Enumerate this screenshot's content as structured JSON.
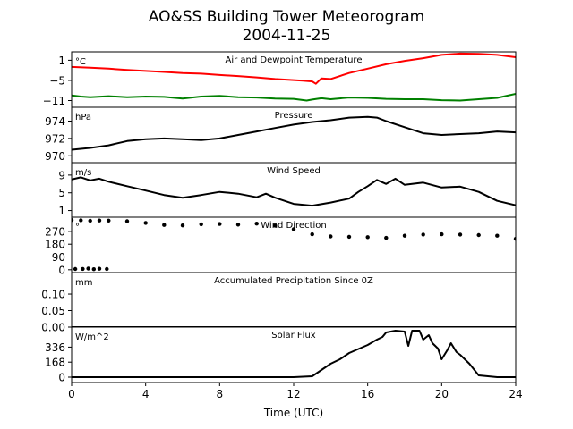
{
  "title_line1": "AO&SS Building Tower Meteorogram",
  "title_line2": "2004-11-25",
  "chart_data": {
    "type": "line",
    "xlabel": "Time (UTC)",
    "xlim": [
      0,
      24
    ],
    "xticks": [
      0,
      4,
      8,
      12,
      16,
      20,
      24
    ],
    "panels": [
      {
        "name": "Air and Dewpoint Temperature",
        "unit": "°C",
        "ylim": [
          -13,
          3.5
        ],
        "yticks": [
          {
            "v": 1,
            "label": "1"
          },
          {
            "v": -5,
            "label": "−5"
          },
          {
            "v": -11,
            "label": "−11"
          }
        ],
        "series": [
          {
            "color": "#ff0000",
            "x": [
              0,
              1,
              2,
              3,
              4,
              5,
              6,
              7,
              8,
              9,
              10,
              11,
              12,
              12.5,
              13,
              13.2,
              13.5,
              14,
              15,
              16,
              17,
              18,
              19,
              20,
              21,
              22,
              23,
              24
            ],
            "y": [
              -1,
              -1.2,
              -1.5,
              -1.9,
              -2.2,
              -2.5,
              -2.8,
              -3,
              -3.4,
              -3.7,
              -4.1,
              -4.6,
              -4.9,
              -5.1,
              -5.3,
              -6,
              -4.4,
              -4.6,
              -2.8,
              -1.5,
              -0.2,
              0.8,
              1.6,
              2.6,
              3,
              2.9,
              2.6,
              1.9
            ]
          },
          {
            "color": "#008000",
            "x": [
              0,
              0.5,
              1,
              2,
              3,
              4,
              5,
              6,
              7,
              8,
              9,
              10,
              11,
              12,
              12.7,
              13,
              13.5,
              14,
              15,
              16,
              17,
              18,
              19,
              20,
              21,
              22,
              23,
              24
            ],
            "y": [
              -9.5,
              -9.8,
              -10,
              -9.7,
              -10,
              -9.8,
              -9.9,
              -10.4,
              -9.8,
              -9.6,
              -10,
              -10.1,
              -10.4,
              -10.5,
              -11,
              -10.7,
              -10.3,
              -10.6,
              -10.1,
              -10.2,
              -10.5,
              -10.6,
              -10.6,
              -10.9,
              -11,
              -10.6,
              -10.2,
              -9
            ]
          }
        ]
      },
      {
        "name": "Pressure",
        "unit": "hPa",
        "ylim": [
          969.2,
          975.6
        ],
        "yticks": [
          {
            "v": 974,
            "label": "974"
          },
          {
            "v": 972,
            "label": "972"
          },
          {
            "v": 970,
            "label": "970"
          }
        ],
        "series": [
          {
            "color": "#000000",
            "x": [
              0,
              1,
              2,
              3,
              4,
              5,
              6,
              7,
              8,
              9,
              10,
              11,
              12,
              13,
              14,
              15,
              16,
              16.5,
              17,
              18,
              19,
              20,
              21,
              22,
              23,
              24
            ],
            "y": [
              970.7,
              970.9,
              971.2,
              971.7,
              971.9,
              972.0,
              971.9,
              971.8,
              972.0,
              972.4,
              972.8,
              973.2,
              973.6,
              973.9,
              974.1,
              974.4,
              974.5,
              974.4,
              974.0,
              973.3,
              972.6,
              972.4,
              972.5,
              972.6,
              972.8,
              972.7
            ]
          }
        ]
      },
      {
        "name": "Wind Speed",
        "unit": "m/s",
        "ylim": [
          -0.5,
          11.8
        ],
        "yticks": [
          {
            "v": 9,
            "label": "9"
          },
          {
            "v": 5,
            "label": "5"
          },
          {
            "v": 1,
            "label": "1"
          }
        ],
        "series": [
          {
            "color": "#000000",
            "x": [
              0,
              0.5,
              1,
              1.5,
              2,
              3,
              4,
              5,
              6,
              7,
              8,
              9,
              10,
              10.5,
              11,
              12,
              13,
              14,
              15,
              15.5,
              16,
              16.5,
              17,
              17.5,
              18,
              19,
              20,
              21,
              22,
              23,
              24
            ],
            "y": [
              8,
              8.5,
              7.8,
              8.2,
              7.5,
              6.5,
              5.5,
              4.5,
              3.9,
              4.5,
              5.2,
              4.8,
              4.0,
              4.8,
              3.9,
              2.5,
              2.1,
              2.8,
              3.7,
              5.2,
              6.5,
              7.9,
              7,
              8.2,
              6.8,
              7.3,
              6.2,
              6.4,
              5.2,
              3.2,
              2.2
            ]
          }
        ]
      },
      {
        "name": "Wind Direction",
        "unit": "°",
        "ylim": [
          -20,
          370
        ],
        "yticks": [
          {
            "v": 270,
            "label": "270"
          },
          {
            "v": 180,
            "label": "180"
          },
          {
            "v": 90,
            "label": "90"
          },
          {
            "v": 0,
            "label": "0"
          }
        ],
        "series": [
          {
            "color": "#000000",
            "style": "dots",
            "x": [
              0,
              0.5,
              1,
              1.5,
              2,
              3,
              4,
              5,
              6,
              7,
              8,
              9,
              10,
              11,
              12,
              13,
              14,
              15,
              16,
              17,
              18,
              19,
              20,
              21,
              22,
              23,
              24
            ],
            "y": [
              350,
              348,
              345,
              347,
              346,
              342,
              330,
              315,
              312,
              320,
              322,
              318,
              325,
              310,
              285,
              250,
              235,
              232,
              230,
              225,
              240,
              248,
              250,
              248,
              244,
              240,
              218
            ]
          },
          {
            "color": "#000000",
            "style": "dots",
            "x": [
              0.2,
              0.6,
              0.9,
              1.2,
              1.5,
              1.9
            ],
            "y": [
              5,
              6,
              8,
              4,
              7,
              5
            ]
          }
        ]
      },
      {
        "name": "Accumulated Precipitation Since 0Z",
        "unit": "mm",
        "ylim": [
          0,
          0.165
        ],
        "yticks": [
          {
            "v": 0.1,
            "label": "0.10"
          },
          {
            "v": 0.05,
            "label": "0.05"
          },
          {
            "v": 0,
            "label": "0.00"
          }
        ],
        "series": [
          {
            "color": "#000000",
            "x": [
              0,
              24
            ],
            "y": [
              0,
              0
            ]
          }
        ]
      },
      {
        "name": "Solar Flux",
        "unit": "W/m^2",
        "ylim": [
          -60,
          560
        ],
        "yticks": [
          {
            "v": 336,
            "label": "336"
          },
          {
            "v": 168,
            "label": "168"
          },
          {
            "v": 0,
            "label": "0"
          }
        ],
        "series": [
          {
            "color": "#000000",
            "x": [
              0,
              12,
              13,
              13.5,
              14,
              14.3,
              14.5,
              15,
              16,
              16.5,
              16.8,
              17,
              17.5,
              18,
              18.2,
              18.4,
              18.8,
              19,
              19.3,
              19.5,
              19.8,
              20,
              20.3,
              20.5,
              20.8,
              21,
              21.5,
              22,
              23,
              24
            ],
            "y": [
              0,
              0,
              10,
              80,
              150,
              180,
              200,
              270,
              360,
              420,
              450,
              500,
              520,
              510,
              350,
              520,
              520,
              420,
              470,
              380,
              320,
              200,
              300,
              380,
              280,
              250,
              150,
              20,
              0,
              0
            ]
          }
        ]
      }
    ]
  }
}
